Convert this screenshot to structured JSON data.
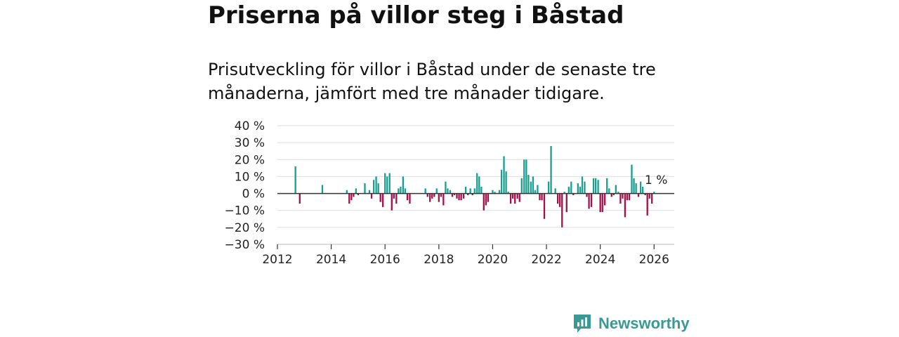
{
  "chart_data": {
    "type": "bar",
    "title": "Priserna på villor steg i Båstad",
    "subtitle": "Prisutveckling för villor i Båstad under de senaste tre månaderna, jämfört med tre månader tidigare.",
    "xlabel": "",
    "ylabel": "",
    "ylim": [
      -30,
      40
    ],
    "xlim": [
      2012,
      2026.75
    ],
    "y_ticks": [
      {
        "value": 40,
        "label": "40 %"
      },
      {
        "value": 30,
        "label": "30 %"
      },
      {
        "value": 20,
        "label": "20 %"
      },
      {
        "value": 10,
        "label": "10 %"
      },
      {
        "value": 0,
        "label": "0 %"
      },
      {
        "value": -10,
        "label": "−10 %"
      },
      {
        "value": -20,
        "label": "−20 %"
      },
      {
        "value": -30,
        "label": "−30 %"
      }
    ],
    "x_ticks": [
      {
        "value": 2012,
        "label": "2012"
      },
      {
        "value": 2014,
        "label": "2014"
      },
      {
        "value": 2016,
        "label": "2016"
      },
      {
        "value": 2018,
        "label": "2018"
      },
      {
        "value": 2020,
        "label": "2020"
      },
      {
        "value": 2022,
        "label": "2022"
      },
      {
        "value": 2024,
        "label": "2024"
      },
      {
        "value": 2026,
        "label": "2026"
      }
    ],
    "grid": true,
    "colors": {
      "positive": "#1a9e8f",
      "negative": "#a3104a",
      "grid": "#dddddd",
      "zero_line": "#333333"
    },
    "last_value_label": "1 %",
    "series": [
      {
        "name": "Prisutveckling",
        "points": [
          {
            "x": 2012.67,
            "y": 16
          },
          {
            "x": 2012.83,
            "y": -6
          },
          {
            "x": 2013.67,
            "y": 5
          },
          {
            "x": 2014.58,
            "y": 2
          },
          {
            "x": 2014.67,
            "y": -6
          },
          {
            "x": 2014.75,
            "y": -4
          },
          {
            "x": 2014.83,
            "y": -2
          },
          {
            "x": 2014.92,
            "y": 3
          },
          {
            "x": 2015.0,
            "y": -1
          },
          {
            "x": 2015.25,
            "y": 6
          },
          {
            "x": 2015.42,
            "y": 2
          },
          {
            "x": 2015.5,
            "y": -3
          },
          {
            "x": 2015.58,
            "y": 8
          },
          {
            "x": 2015.67,
            "y": 10
          },
          {
            "x": 2015.75,
            "y": 6
          },
          {
            "x": 2015.83,
            "y": -5
          },
          {
            "x": 2015.92,
            "y": -8
          },
          {
            "x": 2016.0,
            "y": 12
          },
          {
            "x": 2016.08,
            "y": 10
          },
          {
            "x": 2016.17,
            "y": 12
          },
          {
            "x": 2016.25,
            "y": -10
          },
          {
            "x": 2016.33,
            "y": -3
          },
          {
            "x": 2016.42,
            "y": -6
          },
          {
            "x": 2016.5,
            "y": 3
          },
          {
            "x": 2016.58,
            "y": 4
          },
          {
            "x": 2016.67,
            "y": 10
          },
          {
            "x": 2016.75,
            "y": 3
          },
          {
            "x": 2016.83,
            "y": -4
          },
          {
            "x": 2016.92,
            "y": -6
          },
          {
            "x": 2017.5,
            "y": 3
          },
          {
            "x": 2017.58,
            "y": -2
          },
          {
            "x": 2017.67,
            "y": -5
          },
          {
            "x": 2017.75,
            "y": -3
          },
          {
            "x": 2017.83,
            "y": -2
          },
          {
            "x": 2017.92,
            "y": 3
          },
          {
            "x": 2018.0,
            "y": -5
          },
          {
            "x": 2018.08,
            "y": -2
          },
          {
            "x": 2018.17,
            "y": -7
          },
          {
            "x": 2018.25,
            "y": 7
          },
          {
            "x": 2018.33,
            "y": 3
          },
          {
            "x": 2018.42,
            "y": 2
          },
          {
            "x": 2018.5,
            "y": -2
          },
          {
            "x": 2018.58,
            "y": -1
          },
          {
            "x": 2018.67,
            "y": -3
          },
          {
            "x": 2018.75,
            "y": -4
          },
          {
            "x": 2018.83,
            "y": -4
          },
          {
            "x": 2018.92,
            "y": -3
          },
          {
            "x": 2019.0,
            "y": 4
          },
          {
            "x": 2019.08,
            "y": -1
          },
          {
            "x": 2019.17,
            "y": 3
          },
          {
            "x": 2019.25,
            "y": -1
          },
          {
            "x": 2019.33,
            "y": 3
          },
          {
            "x": 2019.42,
            "y": 12
          },
          {
            "x": 2019.5,
            "y": 10
          },
          {
            "x": 2019.58,
            "y": 4
          },
          {
            "x": 2019.67,
            "y": -10
          },
          {
            "x": 2019.75,
            "y": -7
          },
          {
            "x": 2019.83,
            "y": -5
          },
          {
            "x": 2020.0,
            "y": 2
          },
          {
            "x": 2020.08,
            "y": 1
          },
          {
            "x": 2020.25,
            "y": 2
          },
          {
            "x": 2020.33,
            "y": 14
          },
          {
            "x": 2020.42,
            "y": 22
          },
          {
            "x": 2020.5,
            "y": 13
          },
          {
            "x": 2020.58,
            "y": 1
          },
          {
            "x": 2020.67,
            "y": -6
          },
          {
            "x": 2020.75,
            "y": -3
          },
          {
            "x": 2020.83,
            "y": -6
          },
          {
            "x": 2020.92,
            "y": -3
          },
          {
            "x": 2021.0,
            "y": -5
          },
          {
            "x": 2021.08,
            "y": 9
          },
          {
            "x": 2021.17,
            "y": 20
          },
          {
            "x": 2021.25,
            "y": 20
          },
          {
            "x": 2021.33,
            "y": 11
          },
          {
            "x": 2021.42,
            "y": 7
          },
          {
            "x": 2021.5,
            "y": 10
          },
          {
            "x": 2021.58,
            "y": 2
          },
          {
            "x": 2021.67,
            "y": 5
          },
          {
            "x": 2021.75,
            "y": -4
          },
          {
            "x": 2021.83,
            "y": -4
          },
          {
            "x": 2021.92,
            "y": -15
          },
          {
            "x": 2022.08,
            "y": 7
          },
          {
            "x": 2022.17,
            "y": 28
          },
          {
            "x": 2022.33,
            "y": 3
          },
          {
            "x": 2022.42,
            "y": -6
          },
          {
            "x": 2022.5,
            "y": -8
          },
          {
            "x": 2022.58,
            "y": -20
          },
          {
            "x": 2022.67,
            "y": 1
          },
          {
            "x": 2022.75,
            "y": -11
          },
          {
            "x": 2022.83,
            "y": 4
          },
          {
            "x": 2022.92,
            "y": 7
          },
          {
            "x": 2023.0,
            "y": -1
          },
          {
            "x": 2023.17,
            "y": 6
          },
          {
            "x": 2023.25,
            "y": 4
          },
          {
            "x": 2023.33,
            "y": 10
          },
          {
            "x": 2023.42,
            "y": 7
          },
          {
            "x": 2023.5,
            "y": -2
          },
          {
            "x": 2023.58,
            "y": -9
          },
          {
            "x": 2023.67,
            "y": -8
          },
          {
            "x": 2023.75,
            "y": 9
          },
          {
            "x": 2023.83,
            "y": 9
          },
          {
            "x": 2023.92,
            "y": 8
          },
          {
            "x": 2024.0,
            "y": -11
          },
          {
            "x": 2024.08,
            "y": -11
          },
          {
            "x": 2024.17,
            "y": -7
          },
          {
            "x": 2024.25,
            "y": 9
          },
          {
            "x": 2024.33,
            "y": 3
          },
          {
            "x": 2024.42,
            "y": -2
          },
          {
            "x": 2024.5,
            "y": -1
          },
          {
            "x": 2024.58,
            "y": 5
          },
          {
            "x": 2024.67,
            "y": 1
          },
          {
            "x": 2024.75,
            "y": -6
          },
          {
            "x": 2024.83,
            "y": -3
          },
          {
            "x": 2024.92,
            "y": -14
          },
          {
            "x": 2025.0,
            "y": -4
          },
          {
            "x": 2025.08,
            "y": -4
          },
          {
            "x": 2025.17,
            "y": 17
          },
          {
            "x": 2025.25,
            "y": 9
          },
          {
            "x": 2025.33,
            "y": 6
          },
          {
            "x": 2025.42,
            "y": -2
          },
          {
            "x": 2025.5,
            "y": 7
          },
          {
            "x": 2025.58,
            "y": 4
          },
          {
            "x": 2025.67,
            "y": -1
          },
          {
            "x": 2025.75,
            "y": -13
          },
          {
            "x": 2025.83,
            "y": -3
          },
          {
            "x": 2025.92,
            "y": -6
          },
          {
            "x": 2026.0,
            "y": 1
          }
        ]
      }
    ]
  },
  "brand": {
    "name": "Newsworthy",
    "logo_icon": "newsworthy-chart-icon",
    "color": "#3a9a93"
  }
}
